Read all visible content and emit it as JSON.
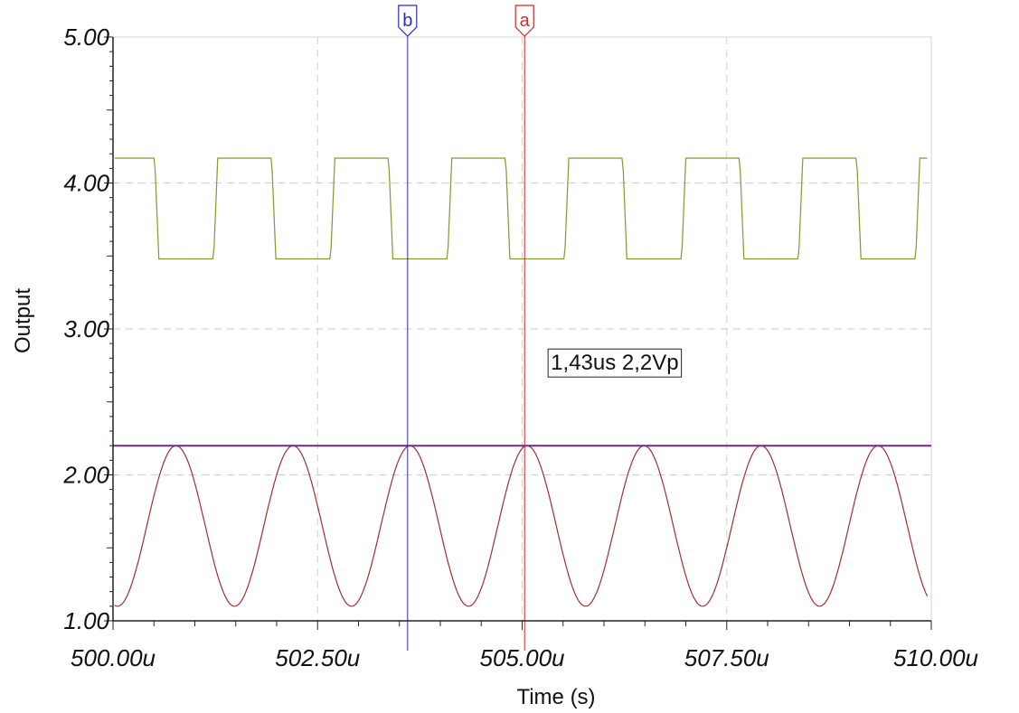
{
  "chart_data": {
    "type": "line",
    "xlabel": "Time (s)",
    "ylabel": "Output",
    "xlim": [
      500.0,
      510.0
    ],
    "ylim": [
      1.0,
      5.0
    ],
    "x_tick_values": [
      500.0,
      502.5,
      505.0,
      507.5,
      510.0
    ],
    "x_tick_labels": [
      "500.00u",
      "502.50u",
      "505.00u",
      "507.50u",
      "510.00u"
    ],
    "y_tick_values": [
      1,
      2,
      3,
      4,
      5
    ],
    "y_tick_labels": [
      "1.00",
      "2.00",
      "3.00",
      "4.00",
      "5.00"
    ],
    "grid": true,
    "series": [
      {
        "role": "square-wave",
        "color": "#7f9a2e",
        "high": 4.17,
        "low": 3.48,
        "period": 1.43,
        "fall_times": [
          500.5,
          501.93,
          503.36,
          504.79,
          506.22,
          507.65,
          509.08
        ],
        "low_duration": 0.72,
        "transition": 0.06
      },
      {
        "role": "sine-wave",
        "color": "#a03030",
        "amplitude": 0.55,
        "offset": 1.65,
        "period": 1.43,
        "peak_times": [
          500.77,
          502.2,
          503.63,
          505.06,
          506.49,
          507.92,
          509.35
        ],
        "x_end": 509.95
      },
      {
        "role": "peak-reference",
        "color": "#6a2a8a",
        "value": 2.2
      }
    ],
    "cursors": [
      {
        "label": "b",
        "x": 503.6,
        "color": "#2a2ad0"
      },
      {
        "label": "a",
        "x": 505.03,
        "color": "#d02a2a"
      }
    ],
    "annotations": [
      {
        "text": "1,43us 2,2Vp",
        "x": 505.35,
        "y": 2.72
      }
    ]
  }
}
